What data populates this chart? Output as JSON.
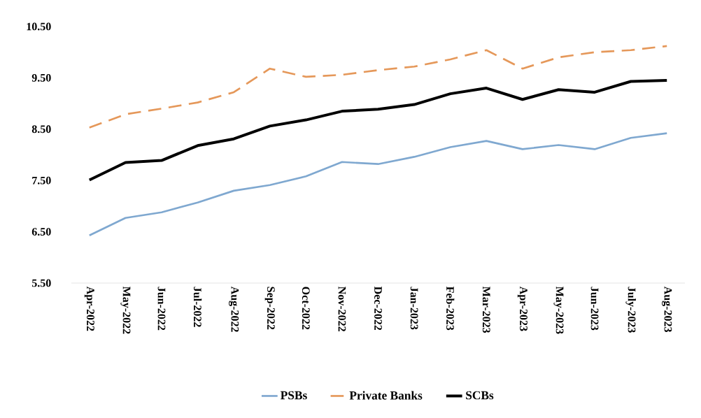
{
  "chart_data": {
    "type": "line",
    "categories": [
      "Apr-2022",
      "May-2022",
      "Jun-2022",
      "Jul-2022",
      "Aug-2022",
      "Sep-2022",
      "Oct-2022",
      "Nov-2022",
      "Dec-2022",
      "Jan-2023",
      "Feb-2023",
      "Mar-2023",
      "Apr-2023",
      "May-2023",
      "Jun-2023",
      "July-2023",
      "Aug-2023"
    ],
    "series": [
      {
        "name": "PSBs",
        "color": "#7fa8d0",
        "line_style": "solid",
        "values": [
          6.43,
          6.77,
          6.88,
          7.07,
          7.3,
          7.41,
          7.58,
          7.86,
          7.82,
          7.96,
          8.15,
          8.27,
          8.11,
          8.19,
          8.11,
          8.33,
          8.42
        ]
      },
      {
        "name": "Private Banks",
        "color": "#e5985a",
        "line_style": "dashed",
        "values": [
          8.53,
          8.79,
          8.9,
          9.02,
          9.22,
          9.68,
          9.52,
          9.56,
          9.65,
          9.72,
          9.86,
          10.04,
          9.68,
          9.9,
          10.0,
          10.04,
          10.12
        ]
      },
      {
        "name": "SCBs",
        "color": "#000000",
        "line_style": "solid",
        "values": [
          7.51,
          7.85,
          7.89,
          8.18,
          8.31,
          8.56,
          8.68,
          8.85,
          8.89,
          8.98,
          9.19,
          9.3,
          9.08,
          9.27,
          9.22,
          9.43,
          9.45
        ]
      }
    ],
    "ylim": [
      5.5,
      10.5
    ],
    "yticks": [
      {
        "value": 5.5,
        "label": "5.50"
      },
      {
        "value": 6.5,
        "label": "6.50"
      },
      {
        "value": 7.5,
        "label": "7.50"
      },
      {
        "value": 8.5,
        "label": "8.50"
      },
      {
        "value": 9.5,
        "label": "9.50"
      },
      {
        "value": 10.5,
        "label": "10.50"
      }
    ],
    "grid": false,
    "legend": "bottom",
    "marker": "none"
  }
}
